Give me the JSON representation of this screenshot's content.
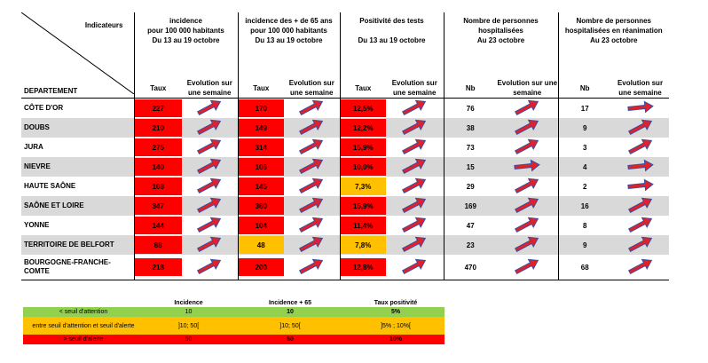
{
  "header": {
    "indicators_label": "Indicateurs",
    "department_label": "DEPARTEMENT",
    "groups": [
      {
        "title_lines": [
          "incidence",
          "pour 100 000 habitants",
          "Du 13 au 19 octobre"
        ],
        "col1": "Taux",
        "col2": "Evolution sur une semaine"
      },
      {
        "title_lines": [
          "incidence des + de 65 ans",
          "pour 100 000 habitants",
          "Du 13 au 19 octobre"
        ],
        "col1": "Taux",
        "col2": "Evolution sur une semaine"
      },
      {
        "title_lines": [
          "Positivité des tests",
          "",
          "Du 13 au 19 octobre"
        ],
        "col1": "Taux",
        "col2": "Evolution sur une semaine"
      },
      {
        "title_lines": [
          "Nombre de personnes",
          "hospitalisées",
          "Au 23 octobre"
        ],
        "col1": "Nb",
        "col2": "Evolution sur une semaine"
      },
      {
        "title_lines": [
          "Nombre de personnes",
          "hospitalisées en réanimation",
          "Au 23 octobre"
        ],
        "col1": "Nb",
        "col2": "Evolution sur une semaine"
      }
    ]
  },
  "rows": [
    {
      "dept": "CÔTE D'OR",
      "incidence": "227",
      "incidence_65": "170",
      "positivite": "12,5%",
      "hospit": "76",
      "rea": "17",
      "inc_color": "red",
      "inc65_color": "red",
      "pos_color": "red",
      "arrows": [
        "up-right",
        "up-right",
        "up-right",
        "up-right",
        "right"
      ]
    },
    {
      "dept": "DOUBS",
      "incidence": "210",
      "incidence_65": "149",
      "positivite": "12,2%",
      "hospit": "38",
      "rea": "9",
      "inc_color": "red",
      "inc65_color": "red",
      "pos_color": "red",
      "arrows": [
        "up-right",
        "up-right",
        "up-right",
        "up-right",
        "up-right"
      ]
    },
    {
      "dept": "JURA",
      "incidence": "275",
      "incidence_65": "314",
      "positivite": "15,9%",
      "hospit": "73",
      "rea": "3",
      "inc_color": "red",
      "inc65_color": "red",
      "pos_color": "red",
      "arrows": [
        "up-right",
        "up-right",
        "up-right",
        "up-right",
        "up-right"
      ]
    },
    {
      "dept": "NIEVRE",
      "incidence": "140",
      "incidence_65": "106",
      "positivite": "10,0%",
      "hospit": "15",
      "rea": "4",
      "inc_color": "red",
      "inc65_color": "red",
      "pos_color": "red",
      "arrows": [
        "up-right",
        "up-right",
        "up-right",
        "right",
        "right"
      ]
    },
    {
      "dept": "HAUTE SAÔNE",
      "incidence": "108",
      "incidence_65": "145",
      "positivite": "7,3%",
      "hospit": "29",
      "rea": "2",
      "inc_color": "red",
      "inc65_color": "red",
      "pos_color": "orange",
      "arrows": [
        "up-right",
        "up-right",
        "up-right",
        "up-right",
        "right"
      ]
    },
    {
      "dept": "SAÔNE ET LOIRE",
      "incidence": "347",
      "incidence_65": "360",
      "positivite": "15,9%",
      "hospit": "169",
      "rea": "16",
      "inc_color": "red",
      "inc65_color": "red",
      "pos_color": "red",
      "arrows": [
        "up-right",
        "up-right",
        "up-right",
        "up-right",
        "up-right"
      ]
    },
    {
      "dept": "YONNE",
      "incidence": "144",
      "incidence_65": "104",
      "positivite": "11,4%",
      "hospit": "47",
      "rea": "8",
      "inc_color": "red",
      "inc65_color": "red",
      "pos_color": "red",
      "arrows": [
        "up-right",
        "up-right",
        "up-right",
        "up-right",
        "up-right"
      ]
    },
    {
      "dept": "TERRITOIRE DE BELFORT",
      "incidence": "88",
      "incidence_65": "48",
      "positivite": "7,8%",
      "hospit": "23",
      "rea": "9",
      "inc_color": "red",
      "inc65_color": "orange",
      "pos_color": "orange",
      "arrows": [
        "up-right",
        "up-right",
        "up-right",
        "up-right",
        "up-right"
      ]
    },
    {
      "dept": "BOURGOGNE-FRANCHE-COMTE",
      "incidence": "218",
      "incidence_65": "200",
      "positivite": "12,8%",
      "hospit": "470",
      "rea": "68",
      "inc_color": "red",
      "inc65_color": "red",
      "pos_color": "red",
      "arrows": [
        "up-right",
        "up-right",
        "up-right",
        "up-right",
        "up-right"
      ]
    }
  ],
  "legend": {
    "headers": [
      "Incidence",
      "Incidence + 65",
      "Taux positivité"
    ],
    "rows": [
      {
        "label": "< seuil d'attention",
        "incidence": "10",
        "incidence_65": "10",
        "positivite": "5%",
        "color": "#92d050"
      },
      {
        "label": "entre seuil d'attention et seuil d'alerte",
        "incidence": "]10; 50[",
        "incidence_65": "]10; 50[",
        "positivite": "]5% ; 10%[",
        "color": "#ffc000"
      },
      {
        "label": "> seuil d'alerte",
        "incidence": "50",
        "incidence_65": "50",
        "positivite": "10%",
        "color": "#ff0000"
      }
    ]
  },
  "colors": {
    "red": "#ff0000",
    "orange": "#ffc000",
    "grey_row": "#d9d9d9",
    "arrow_fill": "#e0202a",
    "arrow_stroke": "#3a4fa0"
  }
}
